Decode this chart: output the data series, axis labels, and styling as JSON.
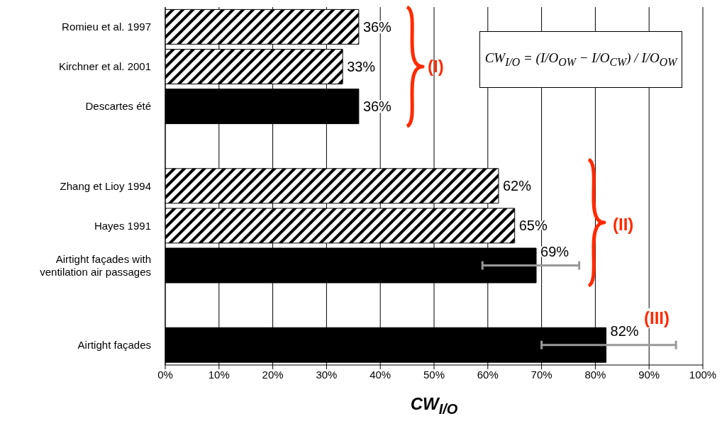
{
  "chart_data": {
    "type": "bar",
    "orientation": "horizontal",
    "stacked": true,
    "categories": [
      "Romieu et al. 1997",
      "Kirchner et al. 2001",
      "Descartes été",
      null,
      "Zhang et Lioy 1994",
      "Hayes 1991",
      "Airtight façades with ventilation air passages",
      null,
      "Airtight façades"
    ],
    "series": [
      {
        "color": "#000000",
        "values": [
          36,
          33,
          null,
          null,
          62,
          65,
          null,
          null,
          null
        ],
        "value_labels": [
          "36%",
          "33%",
          null,
          null,
          "62%",
          "65%",
          null,
          null,
          null
        ]
      },
      {
        "color": "#000000",
        "values": [
          null,
          null,
          36,
          null,
          null,
          null,
          69,
          null,
          82
        ],
        "value_labels": [
          null,
          null,
          "36%",
          null,
          null,
          null,
          "69%",
          null,
          "82%"
        ],
        "errors": [
          null,
          null,
          null,
          null,
          null,
          null,
          [
            59,
            77
          ],
          null,
          [
            70,
            95
          ]
        ]
      }
    ],
    "xlabel": "CW$_{I/O}$",
    "xlim": [
      0,
      100
    ],
    "xticks": [
      {
        "value": 0,
        "label": "0%"
      },
      {
        "value": 10,
        "label": "10%"
      },
      {
        "value": 20,
        "label": "20%"
      },
      {
        "value": 30,
        "label": "30%"
      },
      {
        "value": 40,
        "label": "40%"
      },
      {
        "value": 50,
        "label": "50%"
      },
      {
        "value": 60,
        "label": "60%"
      },
      {
        "value": 70,
        "label": "70%"
      },
      {
        "value": 80,
        "label": "80%"
      },
      {
        "value": 90,
        "label": "90%"
      },
      {
        "value": 100,
        "label": "100%"
      }
    ],
    "grid": "x",
    "annotations": [
      "CW$_{I/O}$ = (I/O$_{OW}$ − I/O$_{CW}$) / I/O$_{OW}$",
      "(I)",
      "(II)",
      "(III)"
    ]
  }
}
